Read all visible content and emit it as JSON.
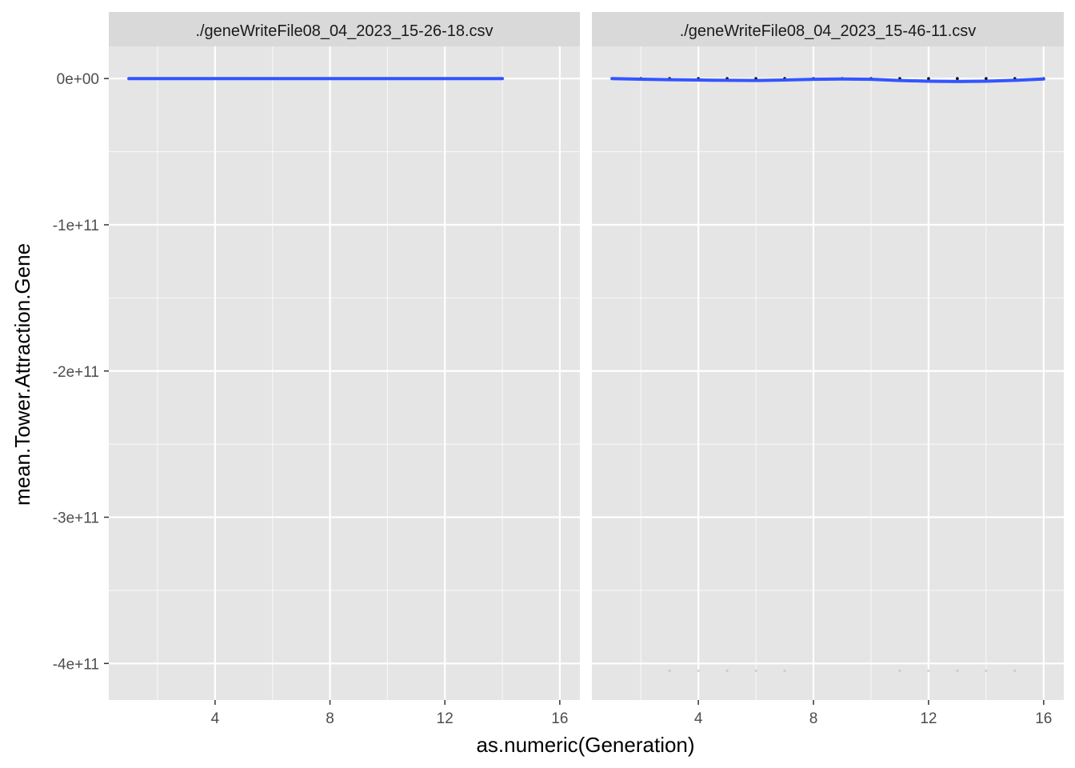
{
  "chart_data": {
    "type": "line",
    "facet_layout": "1 row x 2 columns, shared y axis",
    "xlabel": "as.numeric(Generation)",
    "ylabel": "mean.Tower.Attraction.Gene",
    "x_ticks": [
      4,
      8,
      12,
      16
    ],
    "x_tick_labels": [
      "4",
      "8",
      "12",
      "16"
    ],
    "y_ticks": [
      0,
      -100000000000,
      -200000000000,
      -300000000000,
      -400000000000
    ],
    "y_tick_labels": [
      "0e+00",
      "-1e+11",
      "-2e+11",
      "-3e+11",
      "-4e+11"
    ],
    "ylim": [
      -425000000000,
      22000000000
    ],
    "grid": true,
    "colors": {
      "panel_background": "#e5e5e5",
      "strip_background": "#d9d9d9",
      "grid": "#ffffff",
      "smooth_line": "#3355ff",
      "points": "#000000"
    },
    "panels": [
      {
        "strip_label": "./geneWriteFile08_04_2023_15-26-18.csv",
        "xlim": [
          0.3,
          16.7
        ],
        "points": [
          {
            "x": 1,
            "y": 0
          },
          {
            "x": 2,
            "y": 0
          },
          {
            "x": 3,
            "y": 0
          },
          {
            "x": 4,
            "y": 0
          },
          {
            "x": 5,
            "y": 0
          },
          {
            "x": 6,
            "y": 0
          },
          {
            "x": 7,
            "y": 0
          },
          {
            "x": 8,
            "y": 0
          },
          {
            "x": 9,
            "y": 0
          },
          {
            "x": 10,
            "y": 0
          },
          {
            "x": 11,
            "y": 0
          },
          {
            "x": 12,
            "y": 0
          },
          {
            "x": 13,
            "y": 0
          },
          {
            "x": 14,
            "y": 0
          }
        ],
        "smooth": [
          {
            "x": 1,
            "y": 0
          },
          {
            "x": 4,
            "y": 0
          },
          {
            "x": 7,
            "y": 0
          },
          {
            "x": 10,
            "y": 0
          },
          {
            "x": 14,
            "y": 0
          }
        ]
      },
      {
        "strip_label": "./geneWriteFile08_04_2023_15-46-11.csv",
        "xlim": [
          0.3,
          16.7
        ],
        "points": [
          {
            "x": 1,
            "y": 0
          },
          {
            "x": 2,
            "y": 0
          },
          {
            "x": 3,
            "y": 0
          },
          {
            "x": 4,
            "y": 0
          },
          {
            "x": 5,
            "y": 0
          },
          {
            "x": 6,
            "y": 0
          },
          {
            "x": 7,
            "y": 0
          },
          {
            "x": 8,
            "y": 0
          },
          {
            "x": 9,
            "y": 0
          },
          {
            "x": 10,
            "y": 0
          },
          {
            "x": 11,
            "y": 0
          },
          {
            "x": 12,
            "y": 0
          },
          {
            "x": 13,
            "y": 0
          },
          {
            "x": 14,
            "y": 0
          },
          {
            "x": 15,
            "y": 0
          },
          {
            "x": 16,
            "y": 0
          }
        ],
        "outlier_points": [
          {
            "x": 3,
            "y": -405000000000
          },
          {
            "x": 4,
            "y": -405000000000
          },
          {
            "x": 5,
            "y": -405000000000
          },
          {
            "x": 6,
            "y": -405000000000
          },
          {
            "x": 7,
            "y": -405000000000
          },
          {
            "x": 11,
            "y": -405000000000
          },
          {
            "x": 12,
            "y": -405000000000
          },
          {
            "x": 13,
            "y": -405000000000
          },
          {
            "x": 14,
            "y": -405000000000
          },
          {
            "x": 15,
            "y": -405000000000
          }
        ],
        "smooth": [
          {
            "x": 1,
            "y": 0
          },
          {
            "x": 2,
            "y": -400000000
          },
          {
            "x": 3,
            "y": -800000000
          },
          {
            "x": 4,
            "y": -1000000000
          },
          {
            "x": 5,
            "y": -1200000000
          },
          {
            "x": 6,
            "y": -1300000000
          },
          {
            "x": 7,
            "y": -1000000000
          },
          {
            "x": 8,
            "y": -500000000
          },
          {
            "x": 9,
            "y": -300000000
          },
          {
            "x": 10,
            "y": -500000000
          },
          {
            "x": 11,
            "y": -1300000000
          },
          {
            "x": 12,
            "y": -1800000000
          },
          {
            "x": 13,
            "y": -2000000000
          },
          {
            "x": 14,
            "y": -1800000000
          },
          {
            "x": 15,
            "y": -1200000000
          },
          {
            "x": 16,
            "y": -300000000
          }
        ]
      }
    ]
  }
}
